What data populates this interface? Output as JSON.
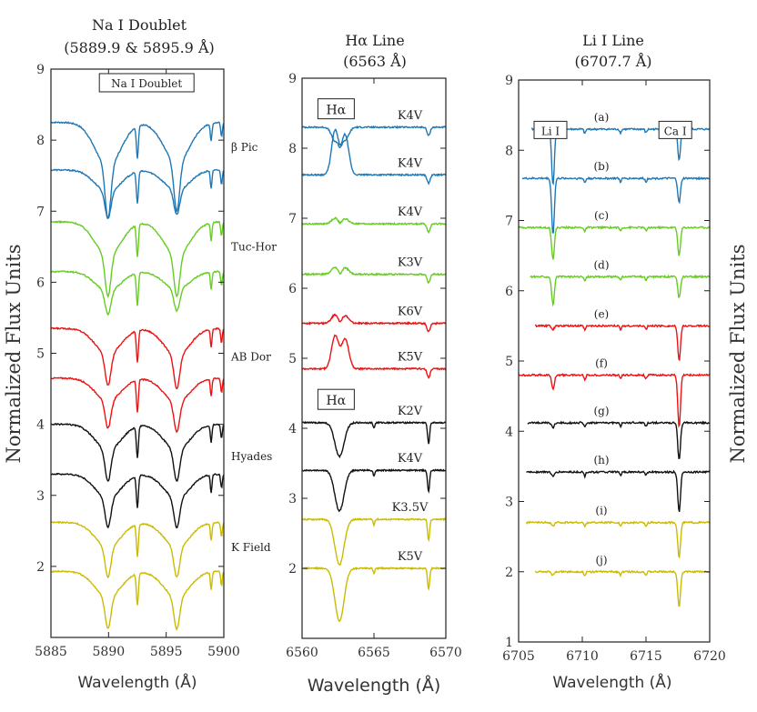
{
  "figure": {
    "left_ylabel": "Normalized Flux Units",
    "right_ylabel": "Normalized Flux Units"
  },
  "colors": {
    "blue": "#1f77b4",
    "green": "#66cc22",
    "red": "#ee1111",
    "black": "#111111",
    "yellow": "#ccbb00"
  },
  "chart_data": [
    {
      "type": "line",
      "title": "Na I Doublet\n(5889.9 & 5895.9 Å)",
      "xlabel": "Wavelength (Å)",
      "ylabel": "Normalized Flux Units",
      "xlim": [
        5885,
        5900
      ],
      "ylim": [
        1,
        9
      ],
      "xticks": [
        5885,
        5890,
        5895,
        5900
      ],
      "yticks": [
        2,
        3,
        4,
        5,
        6,
        7,
        8,
        9
      ],
      "box_label": "Na I Doublet",
      "group_labels": [
        {
          "text": "β Pic",
          "y": 7.9
        },
        {
          "text": "Tuc-Hor",
          "y": 6.5
        },
        {
          "text": "AB Dor",
          "y": 4.95
        },
        {
          "text": "Hyades",
          "y": 3.55
        },
        {
          "text": "K Field",
          "y": 2.27
        }
      ],
      "series": [
        {
          "color": "blue",
          "continuum": 8.25
        },
        {
          "color": "blue",
          "continuum": 7.58
        },
        {
          "color": "green",
          "continuum": 6.85
        },
        {
          "color": "green",
          "continuum": 6.15
        },
        {
          "color": "red",
          "continuum": 5.35
        },
        {
          "color": "red",
          "continuum": 4.65
        },
        {
          "color": "black",
          "continuum": 4.0
        },
        {
          "color": "black",
          "continuum": 3.3
        },
        {
          "color": "yellow",
          "continuum": 2.62
        },
        {
          "color": "yellow",
          "continuum": 1.93
        }
      ],
      "minima": [
        [
          6.9,
          7.0
        ],
        [
          6.9,
          6.95
        ],
        [
          5.8,
          5.8
        ],
        [
          5.55,
          5.6
        ],
        [
          4.55,
          4.5
        ],
        [
          3.95,
          3.9
        ],
        [
          3.2,
          3.2
        ],
        [
          2.55,
          2.55
        ],
        [
          1.85,
          1.85
        ],
        [
          1.12,
          1.12
        ]
      ]
    },
    {
      "type": "line",
      "title": "Hα Line\n(6563 Å)",
      "xlabel": "Wavelength (Å)",
      "ylabel": "",
      "xlim": [
        6560,
        6570
      ],
      "ylim": [
        1,
        9
      ],
      "xticks": [
        6560,
        6565,
        6570
      ],
      "yticks": [
        2,
        3,
        4,
        5,
        6,
        7,
        8,
        9
      ],
      "box_labels": [
        {
          "text": "Hα",
          "y": 8.55
        },
        {
          "text": "Hα",
          "y": 4.4
        }
      ],
      "series": [
        {
          "color": "blue",
          "label": "K4V",
          "continuum": 8.3,
          "feature": "emission",
          "peak": 8.1,
          "dip": 8.05
        },
        {
          "color": "blue",
          "label": "K4V",
          "continuum": 7.62,
          "feature": "emission",
          "peak": 8.25,
          "dip": 7.6
        },
        {
          "color": "green",
          "label": "K4V",
          "continuum": 6.92,
          "feature": "emission",
          "peak": 7.0,
          "dip": 6.85
        },
        {
          "color": "green",
          "label": "K3V",
          "continuum": 6.2,
          "feature": "emission",
          "peak": 6.3,
          "dip": 6.1
        },
        {
          "color": "red",
          "label": "K6V",
          "continuum": 5.5,
          "feature": "emission",
          "peak": 5.62,
          "dip": 5.4
        },
        {
          "color": "red",
          "label": "K5V",
          "continuum": 4.85,
          "feature": "emission",
          "peak": 5.32,
          "dip": 4.85
        },
        {
          "color": "black",
          "label": "K2V",
          "continuum": 4.08,
          "feature": "absorption",
          "depth": 3.6
        },
        {
          "color": "black",
          "label": "K4V",
          "continuum": 3.4,
          "feature": "absorption",
          "depth": 2.82
        },
        {
          "color": "yellow",
          "label": "K3.5V",
          "continuum": 2.7,
          "feature": "absorption",
          "depth": 2.05
        },
        {
          "color": "yellow",
          "label": "K5V",
          "continuum": 2.0,
          "feature": "absorption",
          "depth": 1.25
        }
      ]
    },
    {
      "type": "line",
      "title": "Li I Line\n(6707.7 Å)",
      "xlabel": "Wavelength (Å)",
      "ylabel": "Normalized Flux Units",
      "xlim": [
        6705,
        6720
      ],
      "ylim": [
        1,
        9
      ],
      "xticks": [
        6705,
        6710,
        6715,
        6720
      ],
      "yticks": [
        1,
        2,
        3,
        4,
        5,
        6,
        7,
        8,
        9
      ],
      "box_labels": [
        {
          "text": "Li I",
          "x": 6707.5,
          "y": 8.27
        },
        {
          "text": "Ca I",
          "x": 6717.3,
          "y": 8.27
        }
      ],
      "series": [
        {
          "label": "(a)",
          "color": "blue",
          "continuum": 8.3,
          "x_start": 6706.0,
          "li_depth": 7.5,
          "ca_depth": 7.85
        },
        {
          "label": "(b)",
          "color": "blue",
          "continuum": 7.6,
          "x_start": 6705.3,
          "li_depth": 6.8,
          "ca_depth": 7.25
        },
        {
          "label": "(c)",
          "color": "green",
          "continuum": 6.9,
          "x_start": 6705.0,
          "li_depth": 6.45,
          "ca_depth": 6.5
        },
        {
          "label": "(d)",
          "color": "green",
          "continuum": 6.2,
          "x_start": 6705.9,
          "li_depth": 5.8,
          "ca_depth": 5.9
        },
        {
          "label": "(e)",
          "color": "red",
          "continuum": 5.5,
          "x_start": 6706.3,
          "li_depth": 5.45,
          "ca_depth": 5.0
        },
        {
          "label": "(f)",
          "color": "red",
          "continuum": 4.8,
          "x_start": 6705.0,
          "li_depth": 4.6,
          "ca_depth": 4.05
        },
        {
          "label": "(g)",
          "color": "black",
          "continuum": 4.12,
          "x_start": 6705.7,
          "li_depth": 4.05,
          "ca_depth": 3.6
        },
        {
          "label": "(h)",
          "color": "black",
          "continuum": 3.42,
          "x_start": 6705.6,
          "li_depth": 3.35,
          "ca_depth": 2.85
        },
        {
          "label": "(i)",
          "color": "yellow",
          "continuum": 2.7,
          "x_start": 6705.6,
          "li_depth": 2.65,
          "ca_depth": 2.2
        },
        {
          "label": "(j)",
          "color": "yellow",
          "continuum": 2.0,
          "x_start": 6706.3,
          "li_depth": 1.95,
          "ca_depth": 1.5
        }
      ]
    }
  ]
}
